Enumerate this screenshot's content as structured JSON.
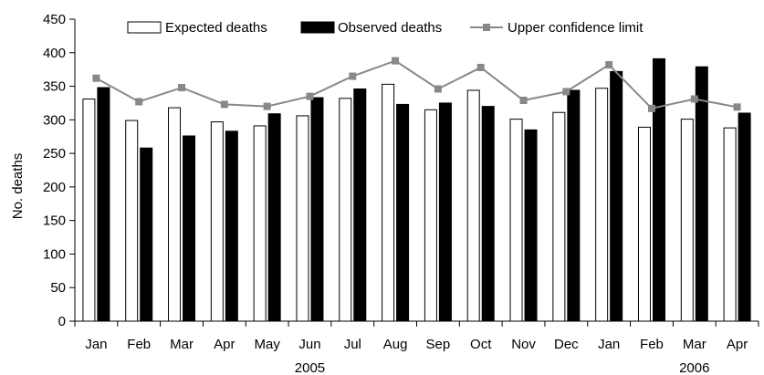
{
  "chart_data": {
    "type": "bar",
    "ylabel": "No. deaths",
    "ylim": [
      0,
      450
    ],
    "yticks": [
      0,
      50,
      100,
      150,
      200,
      250,
      300,
      350,
      400,
      450
    ],
    "categories": [
      "Jan",
      "Feb",
      "Mar",
      "Apr",
      "May",
      "Jun",
      "Jul",
      "Aug",
      "Sep",
      "Oct",
      "Nov",
      "Dec",
      "Jan",
      "Feb",
      "Mar",
      "Apr"
    ],
    "year_labels": [
      {
        "label": "2005",
        "category_index": 5.5
      },
      {
        "label": "2006",
        "category_index": 14.5
      }
    ],
    "legend_position": "top",
    "series": [
      {
        "name": "Expected deaths",
        "kind": "bar",
        "color": "#ffffff",
        "values": [
          331,
          299,
          318,
          297,
          291,
          306,
          332,
          353,
          315,
          344,
          301,
          311,
          347,
          289,
          301,
          288
        ]
      },
      {
        "name": "Observed deaths",
        "kind": "bar",
        "color": "#000000",
        "values": [
          348,
          258,
          276,
          283,
          309,
          333,
          346,
          323,
          325,
          320,
          285,
          344,
          372,
          391,
          379,
          310
        ]
      },
      {
        "name": "Upper confidence limit",
        "kind": "line",
        "color": "#888888",
        "values": [
          362,
          327,
          348,
          323,
          320,
          335,
          365,
          388,
          346,
          378,
          329,
          342,
          382,
          317,
          331,
          319
        ]
      }
    ]
  }
}
